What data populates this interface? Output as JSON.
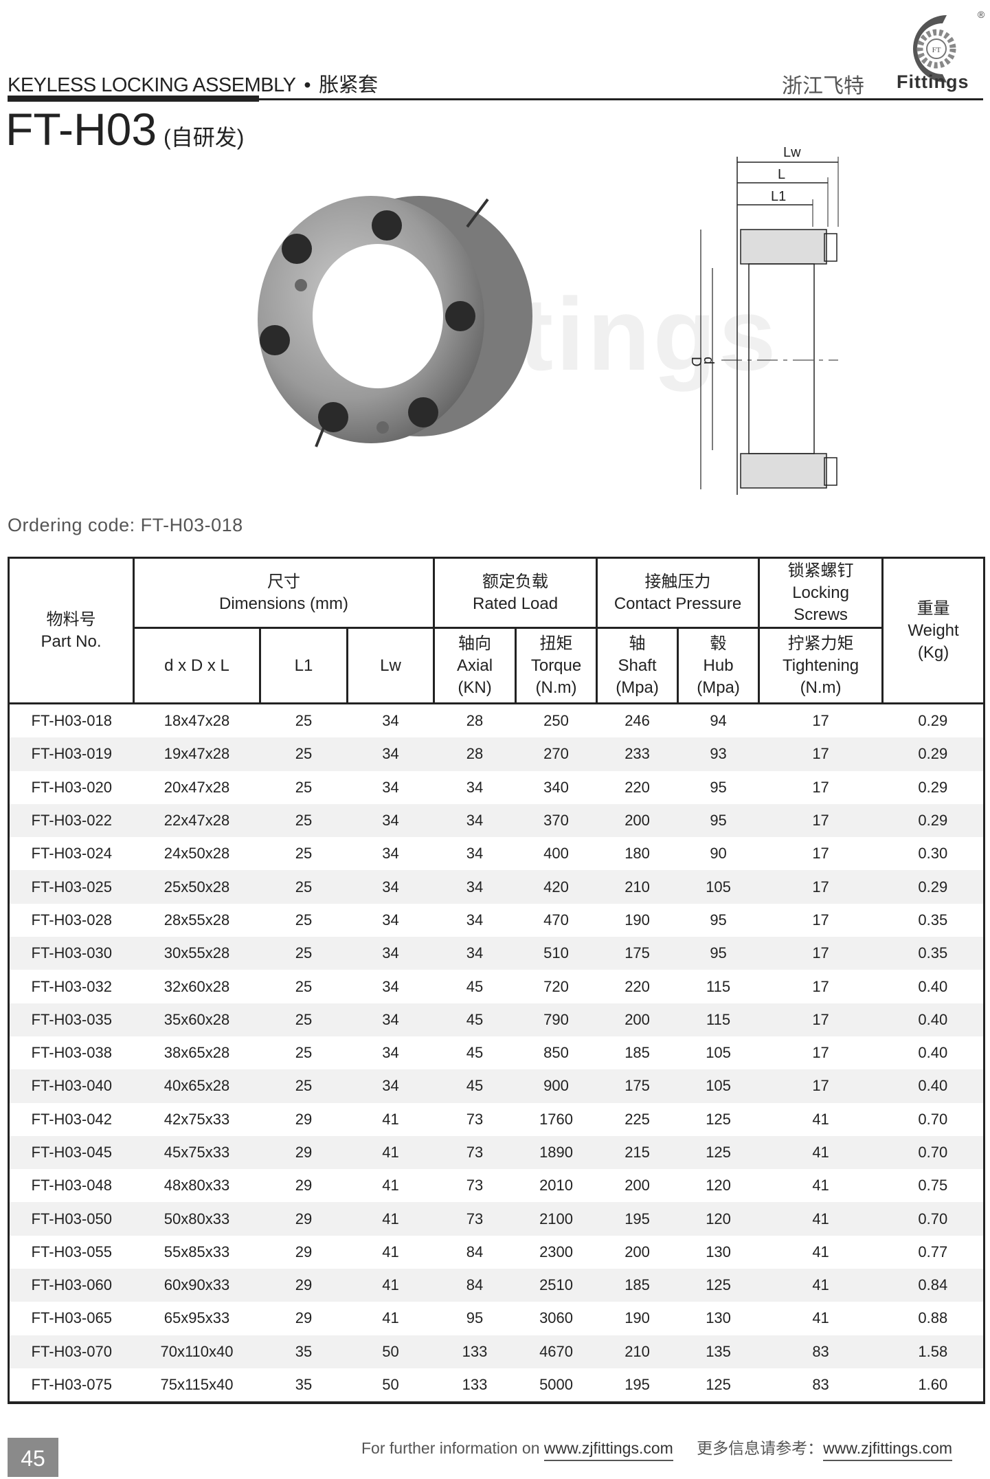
{
  "header": {
    "category_en": "KEYLESS LOCKING ASSEMBLY",
    "separator": "•",
    "category_cn": "胀紧套",
    "company_cn": "浙江飞特",
    "logo_text": "Fittings",
    "logo_mark": "FT",
    "registered": "®"
  },
  "title": {
    "model": "FT-H03",
    "note": "(自研发)"
  },
  "drawing": {
    "labels": {
      "lw": "Lw",
      "l": "L",
      "l1": "L1",
      "D": "D",
      "d": "d"
    }
  },
  "watermark": "Fittings",
  "ordering_code": "Ordering code: FT-H03-018",
  "table": {
    "headers": {
      "part_no": {
        "cn": "物料号",
        "en": "Part No."
      },
      "dimensions": {
        "cn": "尺寸",
        "en": "Dimensions (mm)"
      },
      "rated_load": {
        "cn": "额定负载",
        "en": "Rated Load"
      },
      "contact_pressure": {
        "cn": "接触压力",
        "en": "Contact Pressure"
      },
      "locking_screws": {
        "cn": "锁紧螺钉",
        "en1": "Locking",
        "en2": "Screws"
      },
      "weight": {
        "cn": "重量",
        "en1": "Weight",
        "en2": "(Kg)"
      },
      "dxdxl": "d x D x L",
      "l1": "L1",
      "lw": "Lw",
      "axial": {
        "cn": "轴向",
        "en": "Axial",
        "unit": "(KN)"
      },
      "torque": {
        "cn": "扭矩",
        "en": "Torque",
        "unit": "(N.m)"
      },
      "shaft": {
        "cn": "轴",
        "en": "Shaft",
        "unit": "(Mpa)"
      },
      "hub": {
        "cn": "毂",
        "en": "Hub",
        "unit": "(Mpa)"
      },
      "tightening": {
        "cn": "拧紧力矩",
        "en": "Tightening",
        "unit": "(N.m)"
      }
    },
    "rows": [
      [
        "FT-H03-018",
        "18x47x28",
        "25",
        "34",
        "28",
        "250",
        "246",
        "94",
        "17",
        "0.29"
      ],
      [
        "FT-H03-019",
        "19x47x28",
        "25",
        "34",
        "28",
        "270",
        "233",
        "93",
        "17",
        "0.29"
      ],
      [
        "FT-H03-020",
        "20x47x28",
        "25",
        "34",
        "34",
        "340",
        "220",
        "95",
        "17",
        "0.29"
      ],
      [
        "FT-H03-022",
        "22x47x28",
        "25",
        "34",
        "34",
        "370",
        "200",
        "95",
        "17",
        "0.29"
      ],
      [
        "FT-H03-024",
        "24x50x28",
        "25",
        "34",
        "34",
        "400",
        "180",
        "90",
        "17",
        "0.30"
      ],
      [
        "FT-H03-025",
        "25x50x28",
        "25",
        "34",
        "34",
        "420",
        "210",
        "105",
        "17",
        "0.29"
      ],
      [
        "FT-H03-028",
        "28x55x28",
        "25",
        "34",
        "34",
        "470",
        "190",
        "95",
        "17",
        "0.35"
      ],
      [
        "FT-H03-030",
        "30x55x28",
        "25",
        "34",
        "34",
        "510",
        "175",
        "95",
        "17",
        "0.35"
      ],
      [
        "FT-H03-032",
        "32x60x28",
        "25",
        "34",
        "45",
        "720",
        "220",
        "115",
        "17",
        "0.40"
      ],
      [
        "FT-H03-035",
        "35x60x28",
        "25",
        "34",
        "45",
        "790",
        "200",
        "115",
        "17",
        "0.40"
      ],
      [
        "FT-H03-038",
        "38x65x28",
        "25",
        "34",
        "45",
        "850",
        "185",
        "105",
        "17",
        "0.40"
      ],
      [
        "FT-H03-040",
        "40x65x28",
        "25",
        "34",
        "45",
        "900",
        "175",
        "105",
        "17",
        "0.40"
      ],
      [
        "FT-H03-042",
        "42x75x33",
        "29",
        "41",
        "73",
        "1760",
        "225",
        "125",
        "41",
        "0.70"
      ],
      [
        "FT-H03-045",
        "45x75x33",
        "29",
        "41",
        "73",
        "1890",
        "215",
        "125",
        "41",
        "0.70"
      ],
      [
        "FT-H03-048",
        "48x80x33",
        "29",
        "41",
        "73",
        "2010",
        "200",
        "120",
        "41",
        "0.75"
      ],
      [
        "FT-H03-050",
        "50x80x33",
        "29",
        "41",
        "73",
        "2100",
        "195",
        "120",
        "41",
        "0.70"
      ],
      [
        "FT-H03-055",
        "55x85x33",
        "29",
        "41",
        "84",
        "2300",
        "200",
        "130",
        "41",
        "0.77"
      ],
      [
        "FT-H03-060",
        "60x90x33",
        "29",
        "41",
        "84",
        "2510",
        "185",
        "125",
        "41",
        "0.84"
      ],
      [
        "FT-H03-065",
        "65x95x33",
        "29",
        "41",
        "95",
        "3060",
        "190",
        "130",
        "41",
        "0.88"
      ],
      [
        "FT-H03-070",
        "70x110x40",
        "35",
        "50",
        "133",
        "4670",
        "210",
        "135",
        "83",
        "1.58"
      ],
      [
        "FT-H03-075",
        "75x115x40",
        "35",
        "50",
        "133",
        "5000",
        "195",
        "125",
        "83",
        "1.60"
      ]
    ]
  },
  "footer": {
    "page_number": "45",
    "info_en": "For further information on",
    "url_1": "www.zjfittings.com",
    "info_cn": "更多信息请参考：",
    "url_2": "www.zjfittings.com"
  }
}
